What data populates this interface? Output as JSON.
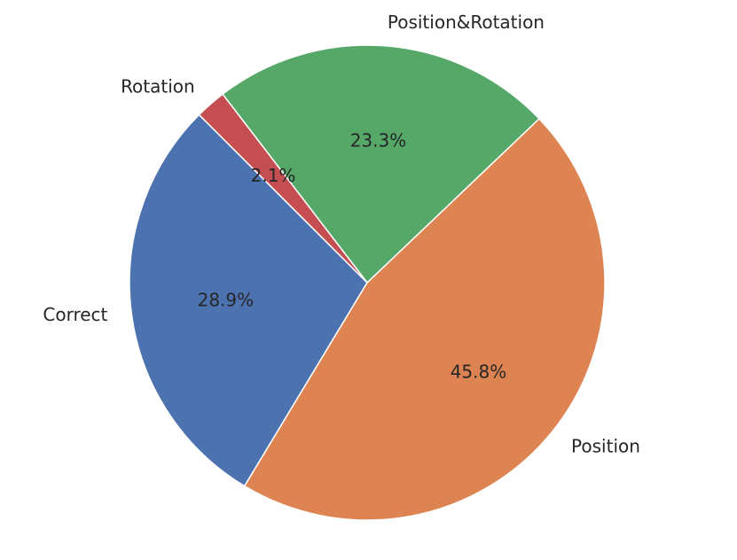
{
  "chart_data": {
    "type": "pie",
    "slices": [
      {
        "label": "Correct",
        "value": 28.9,
        "pct_label": "28.9%",
        "color": "#4c72b0"
      },
      {
        "label": "Position",
        "value": 45.8,
        "pct_label": "45.8%",
        "color": "#dd8452"
      },
      {
        "label": "Position&Rotation",
        "value": 23.3,
        "pct_label": "23.3%",
        "color": "#55a868"
      },
      {
        "label": "Rotation",
        "value": 2.1,
        "pct_label": "2.1%",
        "color": "#c44e52"
      }
    ],
    "start_angle_deg": 135,
    "direction": "counterclockwise",
    "legend": "none",
    "title": ""
  }
}
